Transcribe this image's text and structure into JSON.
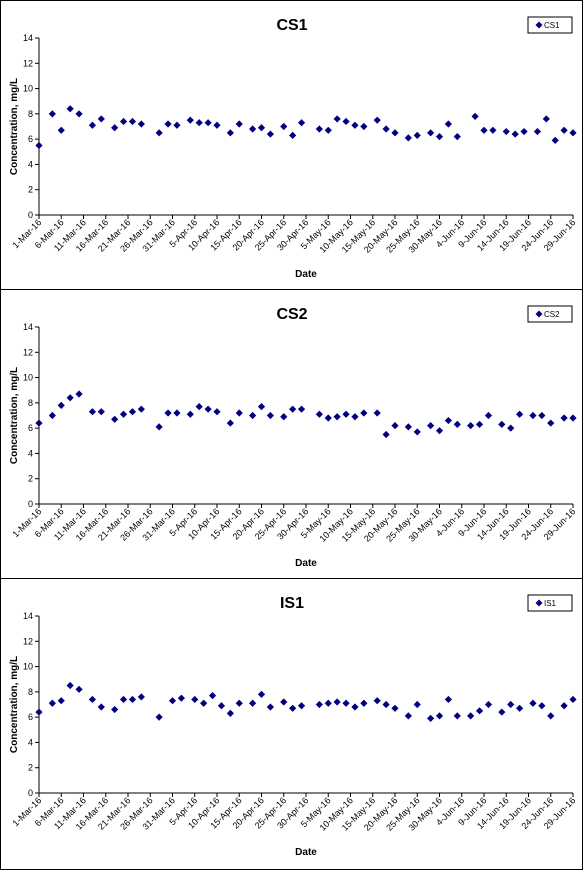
{
  "chart_data": [
    {
      "type": "scatter",
      "title": "CS1",
      "xlabel": "Date",
      "ylabel": "Concentration, mg/L",
      "ylim": [
        0,
        14
      ],
      "yticks": [
        0,
        2,
        4,
        6,
        8,
        10,
        12,
        14
      ],
      "xlim": [
        "1-Mar-16",
        "29-Jun-16"
      ],
      "xtick_labels": [
        "1-Mar-16",
        "6-Mar-16",
        "11-Mar-16",
        "16-Mar-16",
        "21-Mar-16",
        "26-Mar-16",
        "31-Mar-16",
        "5-Apr-16",
        "10-Apr-16",
        "15-Apr-16",
        "20-Apr-16",
        "25-Apr-16",
        "30-Apr-16",
        "5-May-16",
        "10-May-16",
        "15-May-16",
        "20-May-16",
        "25-May-16",
        "30-May-16",
        "4-Jun-16",
        "9-Jun-16",
        "14-Jun-16",
        "19-Jun-16",
        "24-Jun-16",
        "29-Jun-16"
      ],
      "legend": "top-right",
      "grid": false,
      "marker_color": "#000080",
      "series": [
        {
          "name": "CS1",
          "x": [
            "2016-03-01",
            "2016-03-04",
            "2016-03-06",
            "2016-03-08",
            "2016-03-10",
            "2016-03-13",
            "2016-03-15",
            "2016-03-18",
            "2016-03-20",
            "2016-03-22",
            "2016-03-24",
            "2016-03-28",
            "2016-03-30",
            "2016-04-01",
            "2016-04-04",
            "2016-04-06",
            "2016-04-08",
            "2016-04-10",
            "2016-04-13",
            "2016-04-15",
            "2016-04-18",
            "2016-04-20",
            "2016-04-22",
            "2016-04-25",
            "2016-04-27",
            "2016-04-29",
            "2016-05-03",
            "2016-05-05",
            "2016-05-07",
            "2016-05-09",
            "2016-05-11",
            "2016-05-13",
            "2016-05-16",
            "2016-05-18",
            "2016-05-20",
            "2016-05-23",
            "2016-05-25",
            "2016-05-28",
            "2016-05-30",
            "2016-06-01",
            "2016-06-03",
            "2016-06-07",
            "2016-06-09",
            "2016-06-11",
            "2016-06-14",
            "2016-06-16",
            "2016-06-18",
            "2016-06-21",
            "2016-06-23",
            "2016-06-25",
            "2016-06-27",
            "2016-06-29"
          ],
          "y": [
            5.5,
            8.0,
            6.7,
            8.4,
            8.0,
            7.1,
            7.6,
            6.9,
            7.4,
            7.4,
            7.2,
            6.5,
            7.2,
            7.1,
            7.5,
            7.3,
            7.3,
            7.1,
            6.5,
            7.2,
            6.8,
            6.9,
            6.4,
            7.0,
            6.3,
            7.3,
            6.8,
            6.7,
            7.6,
            7.4,
            7.1,
            7.0,
            7.5,
            6.8,
            6.5,
            6.1,
            6.3,
            6.5,
            6.2,
            7.2,
            6.2,
            7.8,
            6.7,
            6.7,
            6.6,
            6.4,
            6.6,
            6.6,
            7.6,
            5.9,
            6.7,
            6.5
          ]
        }
      ]
    },
    {
      "type": "scatter",
      "title": "CS2",
      "xlabel": "Date",
      "ylabel": "Concentration, mg/L",
      "ylim": [
        0,
        14
      ],
      "yticks": [
        0,
        2,
        4,
        6,
        8,
        10,
        12,
        14
      ],
      "xlim": [
        "1-Mar-16",
        "29-Jun-16"
      ],
      "xtick_labels": [
        "1-Mar-16",
        "6-Mar-16",
        "11-Mar-16",
        "16-Mar-16",
        "21-Mar-16",
        "26-Mar-16",
        "31-Mar-16",
        "5-Apr-16",
        "10-Apr-16",
        "15-Apr-16",
        "20-Apr-16",
        "25-Apr-16",
        "30-Apr-16",
        "5-May-16",
        "10-May-16",
        "15-May-16",
        "20-May-16",
        "25-May-16",
        "30-May-16",
        "4-Jun-16",
        "9-Jun-16",
        "14-Jun-16",
        "19-Jun-16",
        "24-Jun-16",
        "29-Jun-16"
      ],
      "legend": "top-right",
      "grid": false,
      "marker_color": "#000080",
      "series": [
        {
          "name": "CS2",
          "x": [
            "2016-03-01",
            "2016-03-04",
            "2016-03-06",
            "2016-03-08",
            "2016-03-10",
            "2016-03-13",
            "2016-03-15",
            "2016-03-18",
            "2016-03-20",
            "2016-03-22",
            "2016-03-24",
            "2016-03-28",
            "2016-03-30",
            "2016-04-01",
            "2016-04-04",
            "2016-04-06",
            "2016-04-08",
            "2016-04-10",
            "2016-04-13",
            "2016-04-15",
            "2016-04-18",
            "2016-04-20",
            "2016-04-22",
            "2016-04-25",
            "2016-04-27",
            "2016-04-29",
            "2016-05-03",
            "2016-05-05",
            "2016-05-07",
            "2016-05-09",
            "2016-05-11",
            "2016-05-13",
            "2016-05-16",
            "2016-05-18",
            "2016-05-20",
            "2016-05-23",
            "2016-05-25",
            "2016-05-28",
            "2016-05-30",
            "2016-06-01",
            "2016-06-03",
            "2016-06-06",
            "2016-06-08",
            "2016-06-10",
            "2016-06-13",
            "2016-06-15",
            "2016-06-17",
            "2016-06-20",
            "2016-06-22",
            "2016-06-24",
            "2016-06-27",
            "2016-06-29"
          ],
          "y": [
            6.4,
            7.0,
            7.8,
            8.4,
            8.7,
            7.3,
            7.3,
            6.7,
            7.1,
            7.3,
            7.5,
            6.1,
            7.2,
            7.2,
            7.1,
            7.7,
            7.5,
            7.3,
            6.4,
            7.2,
            7.0,
            7.7,
            7.0,
            6.9,
            7.5,
            7.5,
            7.1,
            6.8,
            6.9,
            7.1,
            6.9,
            7.2,
            7.2,
            5.5,
            6.2,
            6.1,
            5.7,
            6.2,
            5.8,
            6.6,
            6.3,
            6.2,
            6.3,
            7.0,
            6.3,
            6.0,
            7.1,
            7.0,
            7.0,
            6.4,
            6.8,
            6.8
          ]
        }
      ]
    },
    {
      "type": "scatter",
      "title": "IS1",
      "xlabel": "Date",
      "ylabel": "Concentration, mg/L",
      "ylim": [
        0,
        14
      ],
      "yticks": [
        0,
        2,
        4,
        6,
        8,
        10,
        12,
        14
      ],
      "xlim": [
        "1-Mar-16",
        "29-Jun-16"
      ],
      "xtick_labels": [
        "1-Mar-16",
        "6-Mar-16",
        "11-Mar-16",
        "16-Mar-16",
        "21-Mar-16",
        "26-Mar-16",
        "31-Mar-16",
        "5-Apr-16",
        "10-Apr-16",
        "15-Apr-16",
        "20-Apr-16",
        "25-Apr-16",
        "30-Apr-16",
        "5-May-16",
        "10-May-16",
        "15-May-16",
        "20-May-16",
        "25-May-16",
        "30-May-16",
        "4-Jun-16",
        "9-Jun-16",
        "14-Jun-16",
        "19-Jun-16",
        "24-Jun-16",
        "29-Jun-16"
      ],
      "legend": "top-right",
      "grid": false,
      "marker_color": "#000080",
      "series": [
        {
          "name": "IS1",
          "x": [
            "2016-03-01",
            "2016-03-04",
            "2016-03-06",
            "2016-03-08",
            "2016-03-10",
            "2016-03-13",
            "2016-03-15",
            "2016-03-18",
            "2016-03-20",
            "2016-03-22",
            "2016-03-24",
            "2016-03-28",
            "2016-03-31",
            "2016-04-02",
            "2016-04-05",
            "2016-04-07",
            "2016-04-09",
            "2016-04-11",
            "2016-04-13",
            "2016-04-15",
            "2016-04-18",
            "2016-04-20",
            "2016-04-22",
            "2016-04-25",
            "2016-04-27",
            "2016-04-29",
            "2016-05-03",
            "2016-05-05",
            "2016-05-07",
            "2016-05-09",
            "2016-05-11",
            "2016-05-13",
            "2016-05-16",
            "2016-05-18",
            "2016-05-20",
            "2016-05-23",
            "2016-05-25",
            "2016-05-28",
            "2016-05-30",
            "2016-06-01",
            "2016-06-03",
            "2016-06-06",
            "2016-06-08",
            "2016-06-10",
            "2016-06-13",
            "2016-06-15",
            "2016-06-17",
            "2016-06-20",
            "2016-06-22",
            "2016-06-24",
            "2016-06-27",
            "2016-06-29"
          ],
          "y": [
            6.4,
            7.1,
            7.3,
            8.5,
            8.2,
            7.4,
            6.8,
            6.6,
            7.4,
            7.4,
            7.6,
            6.0,
            7.3,
            7.5,
            7.4,
            7.1,
            7.7,
            6.9,
            6.3,
            7.1,
            7.1,
            7.8,
            6.8,
            7.2,
            6.7,
            6.9,
            7.0,
            7.1,
            7.2,
            7.1,
            6.8,
            7.1,
            7.3,
            7.0,
            6.7,
            6.1,
            7.0,
            5.9,
            6.1,
            7.4,
            6.1,
            6.1,
            6.5,
            7.0,
            6.4,
            7.0,
            6.7,
            7.1,
            6.9,
            6.1,
            6.9,
            7.4
          ]
        }
      ]
    }
  ]
}
